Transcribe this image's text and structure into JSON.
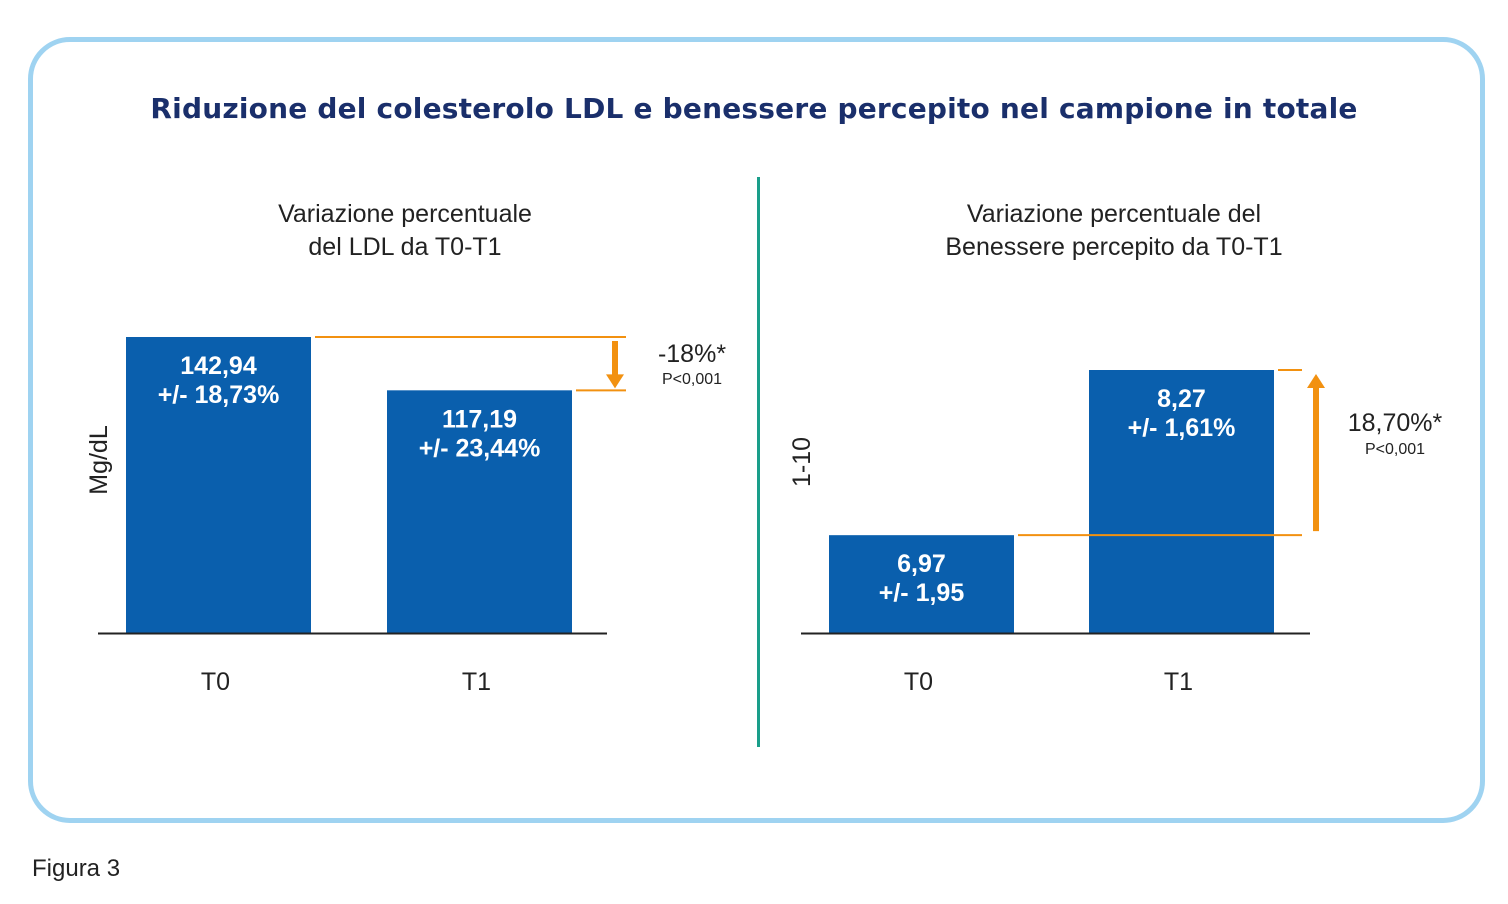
{
  "title": "Riduzione del colesterolo LDL e benessere percepito nel campione in totale",
  "figure_caption": "Figura 3",
  "colors": {
    "bar": "#0a5fad",
    "highlight": "#f29110",
    "divider": "#1a9e8a",
    "frame": "#9fd3f1",
    "title": "#1a2f6b"
  },
  "chart_data": [
    {
      "type": "bar",
      "title_lines": [
        "Variazione percentuale",
        "del LDL da T0-T1"
      ],
      "ylabel": "Mg/dL",
      "xlabel": "",
      "categories": [
        "T0",
        "T1"
      ],
      "values": [
        142.94,
        117.19
      ],
      "ylim": [
        0,
        142.94
      ],
      "bar_labels": [
        [
          "142,94",
          "+/- 18,73%"
        ],
        [
          "117,19",
          "+/- 23,44%"
        ]
      ],
      "change": {
        "label": "-18%*",
        "p_value": "P<0,001",
        "direction": "down"
      },
      "grid": false,
      "legend": "none"
    },
    {
      "type": "bar",
      "title_lines": [
        "Variazione percentuale del",
        "Benessere percepito da T0-T1"
      ],
      "ylabel": "1-10",
      "xlabel": "",
      "categories": [
        "T0",
        "T1"
      ],
      "values": [
        6.97,
        8.27
      ],
      "ylim": [
        6.2,
        8.27
      ],
      "bar_labels": [
        [
          "6,97",
          "+/- 1,95"
        ],
        [
          "8,27",
          "+/- 1,61%"
        ]
      ],
      "change": {
        "label": "18,70%*",
        "p_value": "P<0,001",
        "direction": "up"
      },
      "grid": false,
      "legend": "none"
    }
  ]
}
